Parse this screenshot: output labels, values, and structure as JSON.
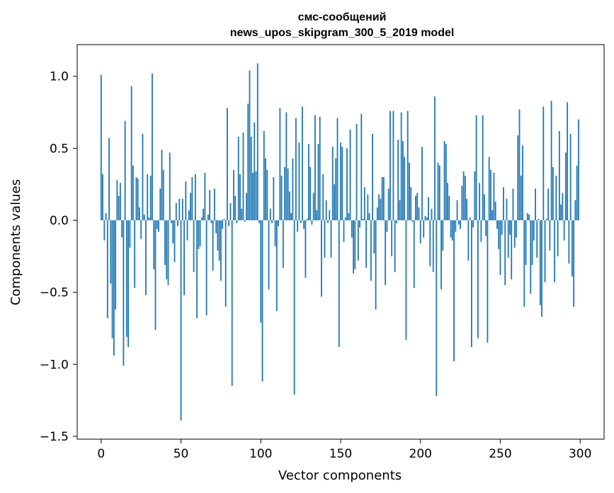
{
  "chart_data": {
    "type": "bar",
    "title": "смс-сообщений",
    "subtitle": "news_upos_skipgram_300_5_2019 model",
    "xlabel": "Vector components",
    "ylabel": "Components values",
    "xlim": [
      -15,
      315
    ],
    "ylim": [
      -1.52,
      1.22
    ],
    "x_ticks": [
      0,
      50,
      100,
      150,
      200,
      250,
      300
    ],
    "x_tick_labels": [
      "0",
      "50",
      "100",
      "150",
      "200",
      "250",
      "300"
    ],
    "y_ticks": [
      -1.5,
      -1.0,
      -0.5,
      0.0,
      0.5,
      1.0
    ],
    "y_tick_labels": [
      "−1.5",
      "−1.0",
      "−0.5",
      "0.0",
      "0.5",
      "1.0"
    ],
    "grid": false,
    "bar_color": "#1f77b4",
    "values": [
      1.01,
      0.32,
      -0.14,
      0.05,
      -0.68,
      0.57,
      -0.44,
      -0.82,
      -0.94,
      -0.62,
      0.28,
      0.17,
      0.26,
      -0.12,
      -1.01,
      0.69,
      -0.81,
      -0.88,
      -0.19,
      0.93,
      0.38,
      -0.47,
      0.3,
      0.29,
      0.09,
      -0.13,
      0.6,
      0.04,
      -0.52,
      0.32,
      0.02,
      0.31,
      1.02,
      -0.34,
      -0.76,
      -0.06,
      -0.08,
      0.22,
      0.49,
      0.35,
      -0.31,
      -0.41,
      -0.45,
      0.47,
      -0.02,
      -0.16,
      -0.29,
      0.12,
      -0.04,
      0.15,
      -1.39,
      0.15,
      -0.52,
      0.27,
      -0.14,
      0.07,
      0.19,
      0.3,
      -0.36,
      0.32,
      -0.68,
      -0.2,
      -0.18,
      0.02,
      0.08,
      0.33,
      -0.66,
      0.04,
      0.21,
      -0.02,
      -0.35,
      0.22,
      -0.09,
      -0.21,
      -0.28,
      -0.42,
      -0.06,
      0.01,
      -0.6,
      0.78,
      -0.04,
      0.12,
      -1.15,
      0.35,
      0.17,
      -0.02,
      0.58,
      0.32,
      0.08,
      0.61,
      -0.01,
      0.19,
      0.81,
      1.04,
      0.58,
      0.33,
      0.68,
      0.34,
      1.09,
      -0.02,
      -0.71,
      -1.12,
      0.62,
      0.43,
      0.35,
      -0.48,
      0.08,
      -0.02,
      0.3,
      -0.18,
      -0.63,
      -0.04,
      0.78,
      0.31,
      -0.33,
      0.37,
      0.75,
      0.36,
      0.2,
      0.05,
      0.43,
      -1.21,
      0.71,
      -0.08,
      0.54,
      -0.02,
      0.79,
      -0.06,
      -0.4,
      0.01,
      0.53,
      0.37,
      -0.03,
      0.19,
      0.73,
      0.07,
      0.53,
      0.72,
      -0.53,
      0.32,
      -0.26,
      0.14,
      -0.02,
      0.07,
      -0.26,
      0.51,
      0.25,
      0.43,
      0.71,
      -0.88,
      0.54,
      0.51,
      -0.15,
      0.02,
      0.5,
      0.05,
      0.63,
      -0.12,
      -0.37,
      -0.34,
      0.67,
      -0.28,
      -0.05,
      0.74,
      0.01,
      0.23,
      -0.33,
      0.18,
      0.05,
      -0.42,
      0.6,
      -0.23,
      -0.62,
      0.09,
      0.18,
      0.15,
      0.3,
      0.3,
      -0.45,
      -0.08,
      0.22,
      0.76,
      -0.25,
      0.76,
      -0.36,
      -0.02,
      0.56,
      0.14,
      0.75,
      0.55,
      0.44,
      -0.83,
      0.76,
      0.4,
      0.23,
      -0.01,
      -0.47,
      0.17,
      0.19,
      0.09,
      -0.16,
      0.51,
      -0.12,
      0.03,
      0.02,
      0.16,
      -0.32,
      0.08,
      -0.36,
      0.86,
      -1.22,
      0.4,
      0.38,
      -0.48,
      -0.21,
      0.55,
      0.53,
      0.26,
      0.17,
      -0.12,
      -0.14,
      -0.98,
      -0.08,
      0.14,
      -0.03,
      -0.06,
      0.24,
      0.34,
      0.31,
      0.15,
      -0.28,
      0.02,
      -0.88,
      -0.05,
      0.34,
      0.73,
      -0.82,
      0.26,
      -0.15,
      0.73,
      0.18,
      -0.11,
      -0.85,
      0.44,
      0.35,
      0.07,
      0.33,
      0.13,
      -0.06,
      -0.2,
      -0.38,
      -0.1,
      0.23,
      -0.45,
      0.15,
      -0.26,
      -0.1,
      -0.41,
      0.22,
      -0.19,
      -0.12,
      0.59,
      0.77,
      0.31,
      0.52,
      -0.6,
      -0.31,
      0.05,
      0.04,
      -0.51,
      -0.31,
      -0.14,
      0.22,
      -0.26,
      0.01,
      -0.59,
      -0.67,
      0.79,
      -0.43,
      0.01,
      0.22,
      -0.21,
      0.83,
      0.37,
      -0.43,
      0.31,
      -0.25,
      0.62,
      0.11,
      0.19,
      -0.14,
      0.47,
      0.82,
      -0.3,
      0.6,
      -0.39,
      -0.6,
      0.14,
      0.38,
      0.7
    ]
  }
}
